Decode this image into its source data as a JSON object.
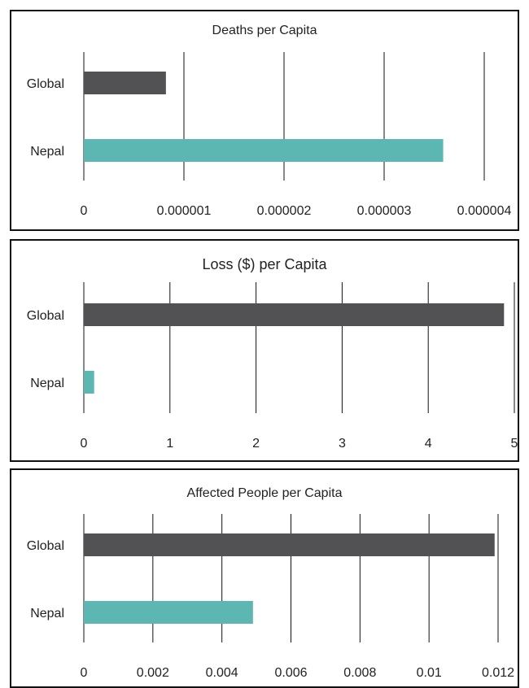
{
  "chart_data": [
    {
      "type": "bar",
      "orientation": "horizontal",
      "title": "Deaths per Capita",
      "categories": [
        "Global",
        "Nepal"
      ],
      "values": [
        8.2e-07,
        3.59e-06
      ],
      "bar_colors": [
        "#525254",
        "#5cb7b2"
      ],
      "xlim": [
        0,
        4e-06
      ],
      "x_ticks": [
        0,
        1e-06,
        2e-06,
        3e-06,
        4e-06
      ],
      "x_tick_labels": [
        "0",
        "0.000001",
        "0.000002",
        "0.000003",
        "0.000004"
      ],
      "grid": "vertical"
    },
    {
      "type": "bar",
      "orientation": "horizontal",
      "title": "Loss ($) per Capita",
      "categories": [
        "Global",
        "Nepal"
      ],
      "values": [
        4.88,
        0.12
      ],
      "bar_colors": [
        "#525254",
        "#5cb7b2"
      ],
      "xlim": [
        0,
        5
      ],
      "x_ticks": [
        0,
        1,
        2,
        3,
        4,
        5
      ],
      "x_tick_labels": [
        "0",
        "1",
        "2",
        "3",
        "4",
        "5"
      ],
      "grid": "vertical"
    },
    {
      "type": "bar",
      "orientation": "horizontal",
      "title": "Affected People per Capita",
      "categories": [
        "Global",
        "Nepal"
      ],
      "values": [
        0.0119,
        0.0049
      ],
      "bar_colors": [
        "#525254",
        "#5cb7b2"
      ],
      "xlim": [
        0,
        0.012
      ],
      "x_ticks": [
        0,
        0.002,
        0.004,
        0.006,
        0.008,
        0.01,
        0.012
      ],
      "x_tick_labels": [
        "0",
        "0.002",
        "0.004",
        "0.006",
        "0.008",
        "0.01",
        "0.012"
      ],
      "grid": "vertical"
    }
  ]
}
